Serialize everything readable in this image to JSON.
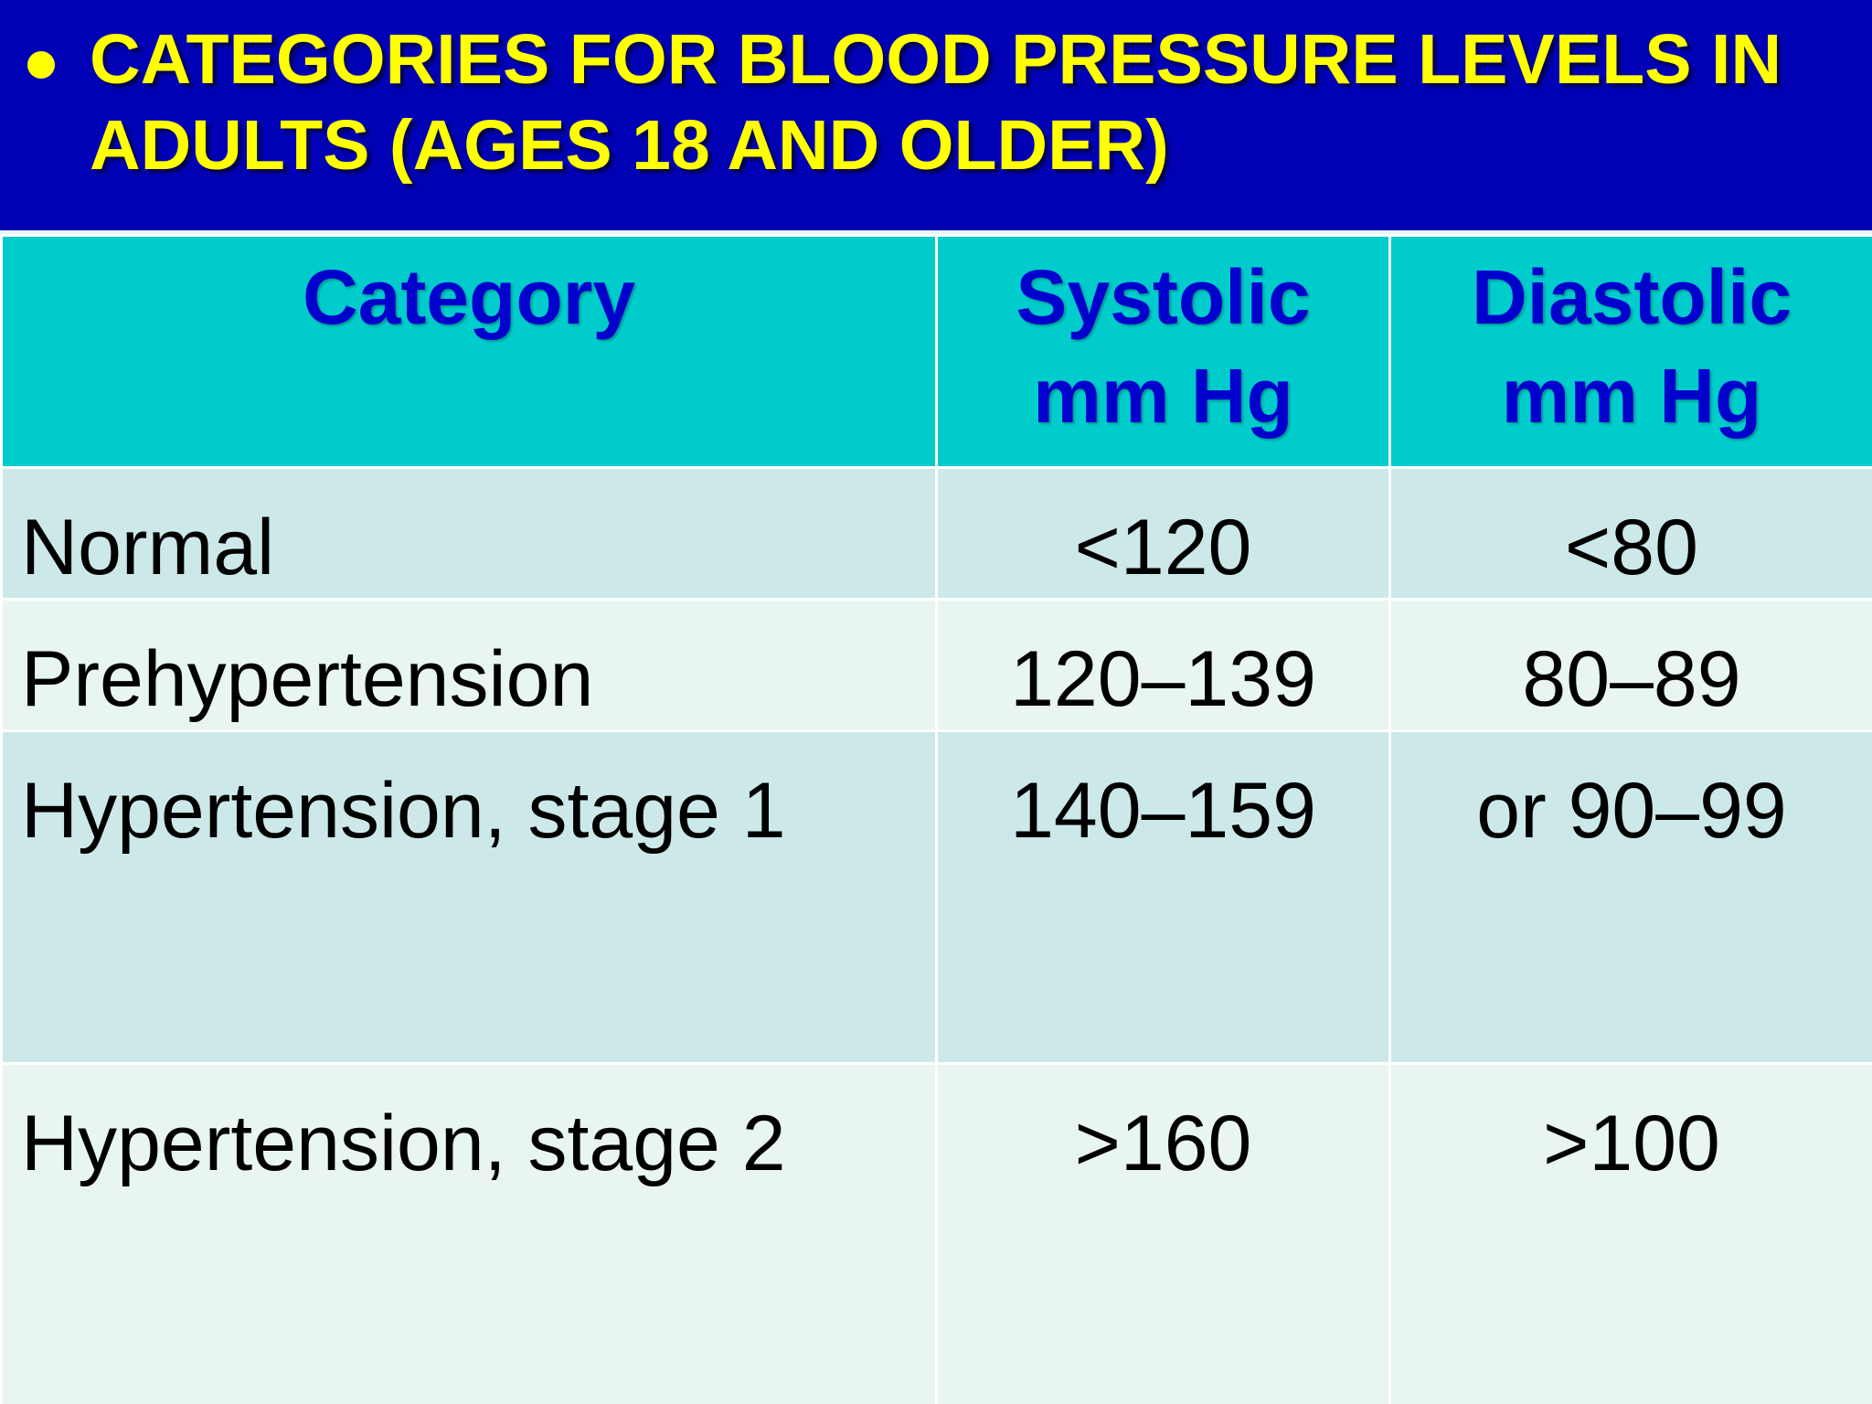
{
  "title": {
    "text": "CATEGORIES FOR BLOOD PRESSURE LEVELS IN ADULTS (AGES 18 AND OLDER)"
  },
  "table": {
    "headers": [
      {
        "line1": "Category",
        "line2": ""
      },
      {
        "line1": "Systolic",
        "line2": "mm Hg"
      },
      {
        "line1": "Diastolic",
        "line2": "mm Hg"
      }
    ],
    "rows": [
      {
        "category": "Normal",
        "systolic": "<120",
        "diastolic": "<80"
      },
      {
        "category": "Prehypertension",
        "systolic": "120–139",
        "diastolic": "80–89"
      },
      {
        "category": "Hypertension, stage 1",
        "systolic": "140–159",
        "diastolic": "or 90–99"
      },
      {
        "category": "Hypertension, stage 2",
        "systolic": ">160",
        "diastolic": ">100"
      }
    ]
  },
  "colors": {
    "title_background": "#0000b4",
    "title_text": "#ffff00",
    "header_background": "#00cccc",
    "header_text": "#0000cc",
    "row_odd": "#cde8e8",
    "row_even": "#e8f5f3"
  }
}
